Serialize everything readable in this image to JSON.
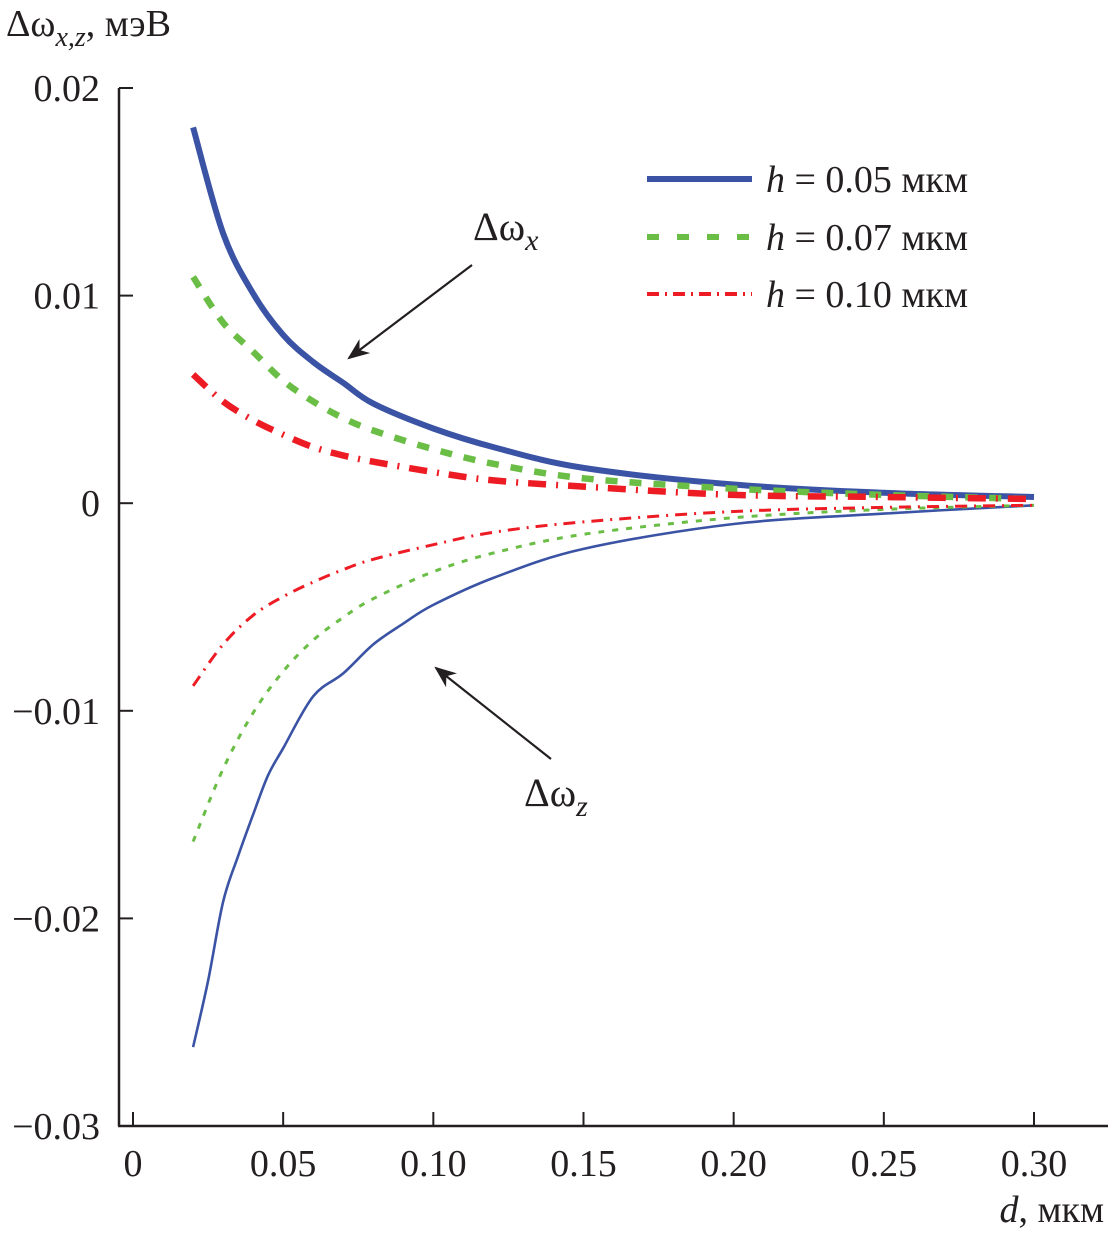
{
  "chart_data": {
    "type": "line",
    "title": "",
    "ylabel": {
      "main": "Δω",
      "sub": "x,z",
      "unit": ", мэВ"
    },
    "xlabel": {
      "var": "d",
      "unit": ", мкм"
    },
    "xlim": [
      0,
      0.3
    ],
    "ylim": [
      -0.03,
      0.02
    ],
    "x_ticks": [
      0,
      0.05,
      0.1,
      0.15,
      0.2,
      0.25,
      0.3
    ],
    "x_tick_labels": [
      "0",
      "0.05",
      "0.10",
      "0.15",
      "0.20",
      "0.25",
      "0.30"
    ],
    "y_ticks": [
      0.02,
      0.01,
      0,
      -0.01,
      -0.02,
      -0.03
    ],
    "y_tick_labels": [
      "0.02",
      "0.01",
      "0",
      "−0.01",
      "−0.02",
      "−0.03"
    ],
    "grid": false,
    "legend": {
      "placement": "top-right",
      "entries": [
        {
          "var": "h",
          "text": " = 0.05 мкм",
          "color": "#3a53a4",
          "style": "solid"
        },
        {
          "var": "h",
          "text": " = 0.07 мкм",
          "color": "#6abd45",
          "style": "dashed"
        },
        {
          "var": "h",
          "text": " = 0.10 мкм",
          "color": "#ed1c24",
          "style": "dash-dot"
        }
      ]
    },
    "annotations": [
      {
        "main": "Δω",
        "sub": "x",
        "target": "Δωx curves",
        "arrow_to": [
          0.07,
          0.0068
        ]
      },
      {
        "main": "Δω",
        "sub": "z",
        "target": "Δωz curves",
        "arrow_to": [
          0.1,
          -0.0078
        ]
      }
    ],
    "series": [
      {
        "name": "Δωx, h = 0.05 мкм",
        "color": "#3a53a4",
        "style": "solid",
        "width": "thick",
        "x": [
          0.02,
          0.03,
          0.04,
          0.05,
          0.06,
          0.07,
          0.08,
          0.1,
          0.12,
          0.15,
          0.2,
          0.25,
          0.3
        ],
        "y": [
          0.0181,
          0.013,
          0.0101,
          0.0081,
          0.0068,
          0.0058,
          0.0048,
          0.0036,
          0.0027,
          0.0017,
          0.0009,
          0.0005,
          0.0003
        ]
      },
      {
        "name": "Δωx, h = 0.07 мкм",
        "color": "#6abd45",
        "style": "dashed",
        "width": "thick",
        "x": [
          0.02,
          0.03,
          0.04,
          0.05,
          0.06,
          0.07,
          0.08,
          0.1,
          0.12,
          0.15,
          0.2,
          0.25,
          0.3
        ],
        "y": [
          0.0109,
          0.0087,
          0.0073,
          0.0059,
          0.0049,
          0.0041,
          0.0035,
          0.0026,
          0.0019,
          0.0012,
          0.0007,
          0.0004,
          0.0002
        ]
      },
      {
        "name": "Δωx, h = 0.10 мкм",
        "color": "#ed1c24",
        "style": "dash-dot",
        "width": "thick",
        "x": [
          0.02,
          0.03,
          0.04,
          0.05,
          0.06,
          0.07,
          0.08,
          0.1,
          0.12,
          0.15,
          0.2,
          0.25,
          0.3
        ],
        "y": [
          0.0062,
          0.0049,
          0.004,
          0.0033,
          0.0027,
          0.0023,
          0.002,
          0.0015,
          0.0011,
          0.0008,
          0.0004,
          0.0003,
          0.0002
        ]
      },
      {
        "name": "Δωz, h = 0.05 мкм",
        "color": "#3a53a4",
        "style": "solid",
        "width": "thin",
        "x": [
          0.02,
          0.025,
          0.03,
          0.035,
          0.04,
          0.045,
          0.05,
          0.06,
          0.07,
          0.08,
          0.09,
          0.1,
          0.12,
          0.15,
          0.2,
          0.25,
          0.3
        ],
        "y": [
          -0.0262,
          -0.023,
          -0.0192,
          -0.017,
          -0.015,
          -0.0131,
          -0.0118,
          -0.0093,
          -0.0082,
          -0.0068,
          -0.0058,
          -0.0049,
          -0.0036,
          -0.0022,
          -0.001,
          -0.0005,
          -0.0001
        ]
      },
      {
        "name": "Δωz, h = 0.07 мкм",
        "color": "#6abd45",
        "style": "dashed",
        "width": "thin",
        "x": [
          0.02,
          0.03,
          0.04,
          0.05,
          0.06,
          0.07,
          0.08,
          0.1,
          0.12,
          0.15,
          0.2,
          0.25,
          0.3
        ],
        "y": [
          -0.0163,
          -0.0128,
          -0.0101,
          -0.0081,
          -0.0066,
          -0.0055,
          -0.0046,
          -0.0033,
          -0.0024,
          -0.0015,
          -0.0007,
          -0.0003,
          -0.0001
        ]
      },
      {
        "name": "Δωz, h = 0.10 мкм",
        "color": "#ed1c24",
        "style": "dash-dot",
        "width": "thin",
        "x": [
          0.02,
          0.03,
          0.04,
          0.05,
          0.06,
          0.07,
          0.08,
          0.1,
          0.12,
          0.15,
          0.2,
          0.25,
          0.3
        ],
        "y": [
          -0.0088,
          -0.0068,
          -0.0054,
          -0.0045,
          -0.0038,
          -0.0032,
          -0.0027,
          -0.002,
          -0.0014,
          -0.0009,
          -0.0004,
          -0.0002,
          -0.0001
        ]
      }
    ]
  }
}
